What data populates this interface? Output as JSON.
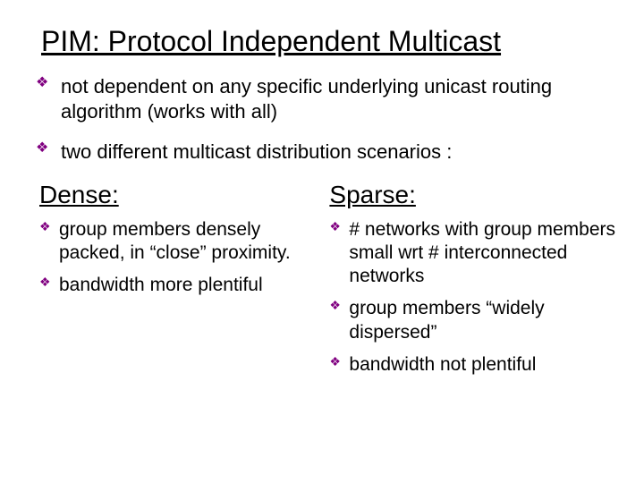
{
  "title": "PIM: Protocol Independent Multicast",
  "topBullets": [
    "not dependent on any specific underlying unicast routing algorithm (works with all)",
    "two different multicast distribution scenarios :"
  ],
  "columns": {
    "left": {
      "heading": "Dense:",
      "items": [
        "group members densely packed, in “close” proximity.",
        "bandwidth more plentiful"
      ]
    },
    "right": {
      "heading": "Sparse:",
      "items": [
        "# networks with group members small wrt # interconnected networks",
        "group members “widely dispersed”",
        "bandwidth not plentiful"
      ]
    }
  },
  "style": {
    "background_color": "#ffffff",
    "text_color": "#000000",
    "bullet_color": "#800080",
    "font_family": "Comic Sans MS",
    "title_fontsize": 32,
    "body_fontsize": 22,
    "subhead_fontsize": 28,
    "subitem_fontsize": 21,
    "slide_width": 720,
    "slide_height": 540
  }
}
